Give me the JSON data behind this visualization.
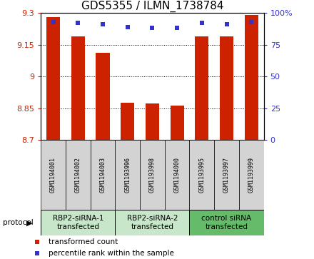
{
  "title": "GDS5355 / ILMN_1738784",
  "samples": [
    "GSM1194001",
    "GSM1194002",
    "GSM1194003",
    "GSM1193996",
    "GSM1193998",
    "GSM1194000",
    "GSM1193995",
    "GSM1193997",
    "GSM1193999"
  ],
  "red_values": [
    9.28,
    9.19,
    9.11,
    8.875,
    8.873,
    8.862,
    9.19,
    9.19,
    9.29
  ],
  "blue_values": [
    93,
    92,
    91,
    89,
    88,
    88,
    92,
    91,
    93
  ],
  "ylim_left": [
    8.7,
    9.3
  ],
  "ylim_right": [
    0,
    100
  ],
  "yticks_left": [
    8.7,
    8.85,
    9.0,
    9.15,
    9.3
  ],
  "yticks_right": [
    0,
    25,
    50,
    75,
    100
  ],
  "ytick_labels_left": [
    "8.7",
    "8.85",
    "9",
    "9.15",
    "9.3"
  ],
  "ytick_labels_right": [
    "0",
    "25",
    "50",
    "75",
    "100%"
  ],
  "groups": [
    {
      "label": "RBP2-siRNA-1\ntransfected",
      "indices": [
        0,
        1,
        2
      ],
      "color": "#c8e6c9"
    },
    {
      "label": "RBP2-siRNA-2\ntransfected",
      "indices": [
        3,
        4,
        5
      ],
      "color": "#c8e6c9"
    },
    {
      "label": "control siRNA\ntransfected",
      "indices": [
        6,
        7,
        8
      ],
      "color": "#66bb6a"
    }
  ],
  "bar_color": "#cc2200",
  "dot_color": "#3333cc",
  "bar_width": 0.55,
  "bar_bottom": 8.7,
  "legend_items": [
    {
      "color": "#cc2200",
      "label": "transformed count"
    },
    {
      "color": "#3333cc",
      "label": "percentile rank within the sample"
    }
  ],
  "protocol_label": "protocol",
  "sample_box_color": "#d3d3d3",
  "title_fontsize": 11,
  "tick_fontsize": 8,
  "sample_fontsize": 6,
  "group_fontsize": 7.5,
  "legend_fontsize": 7.5
}
